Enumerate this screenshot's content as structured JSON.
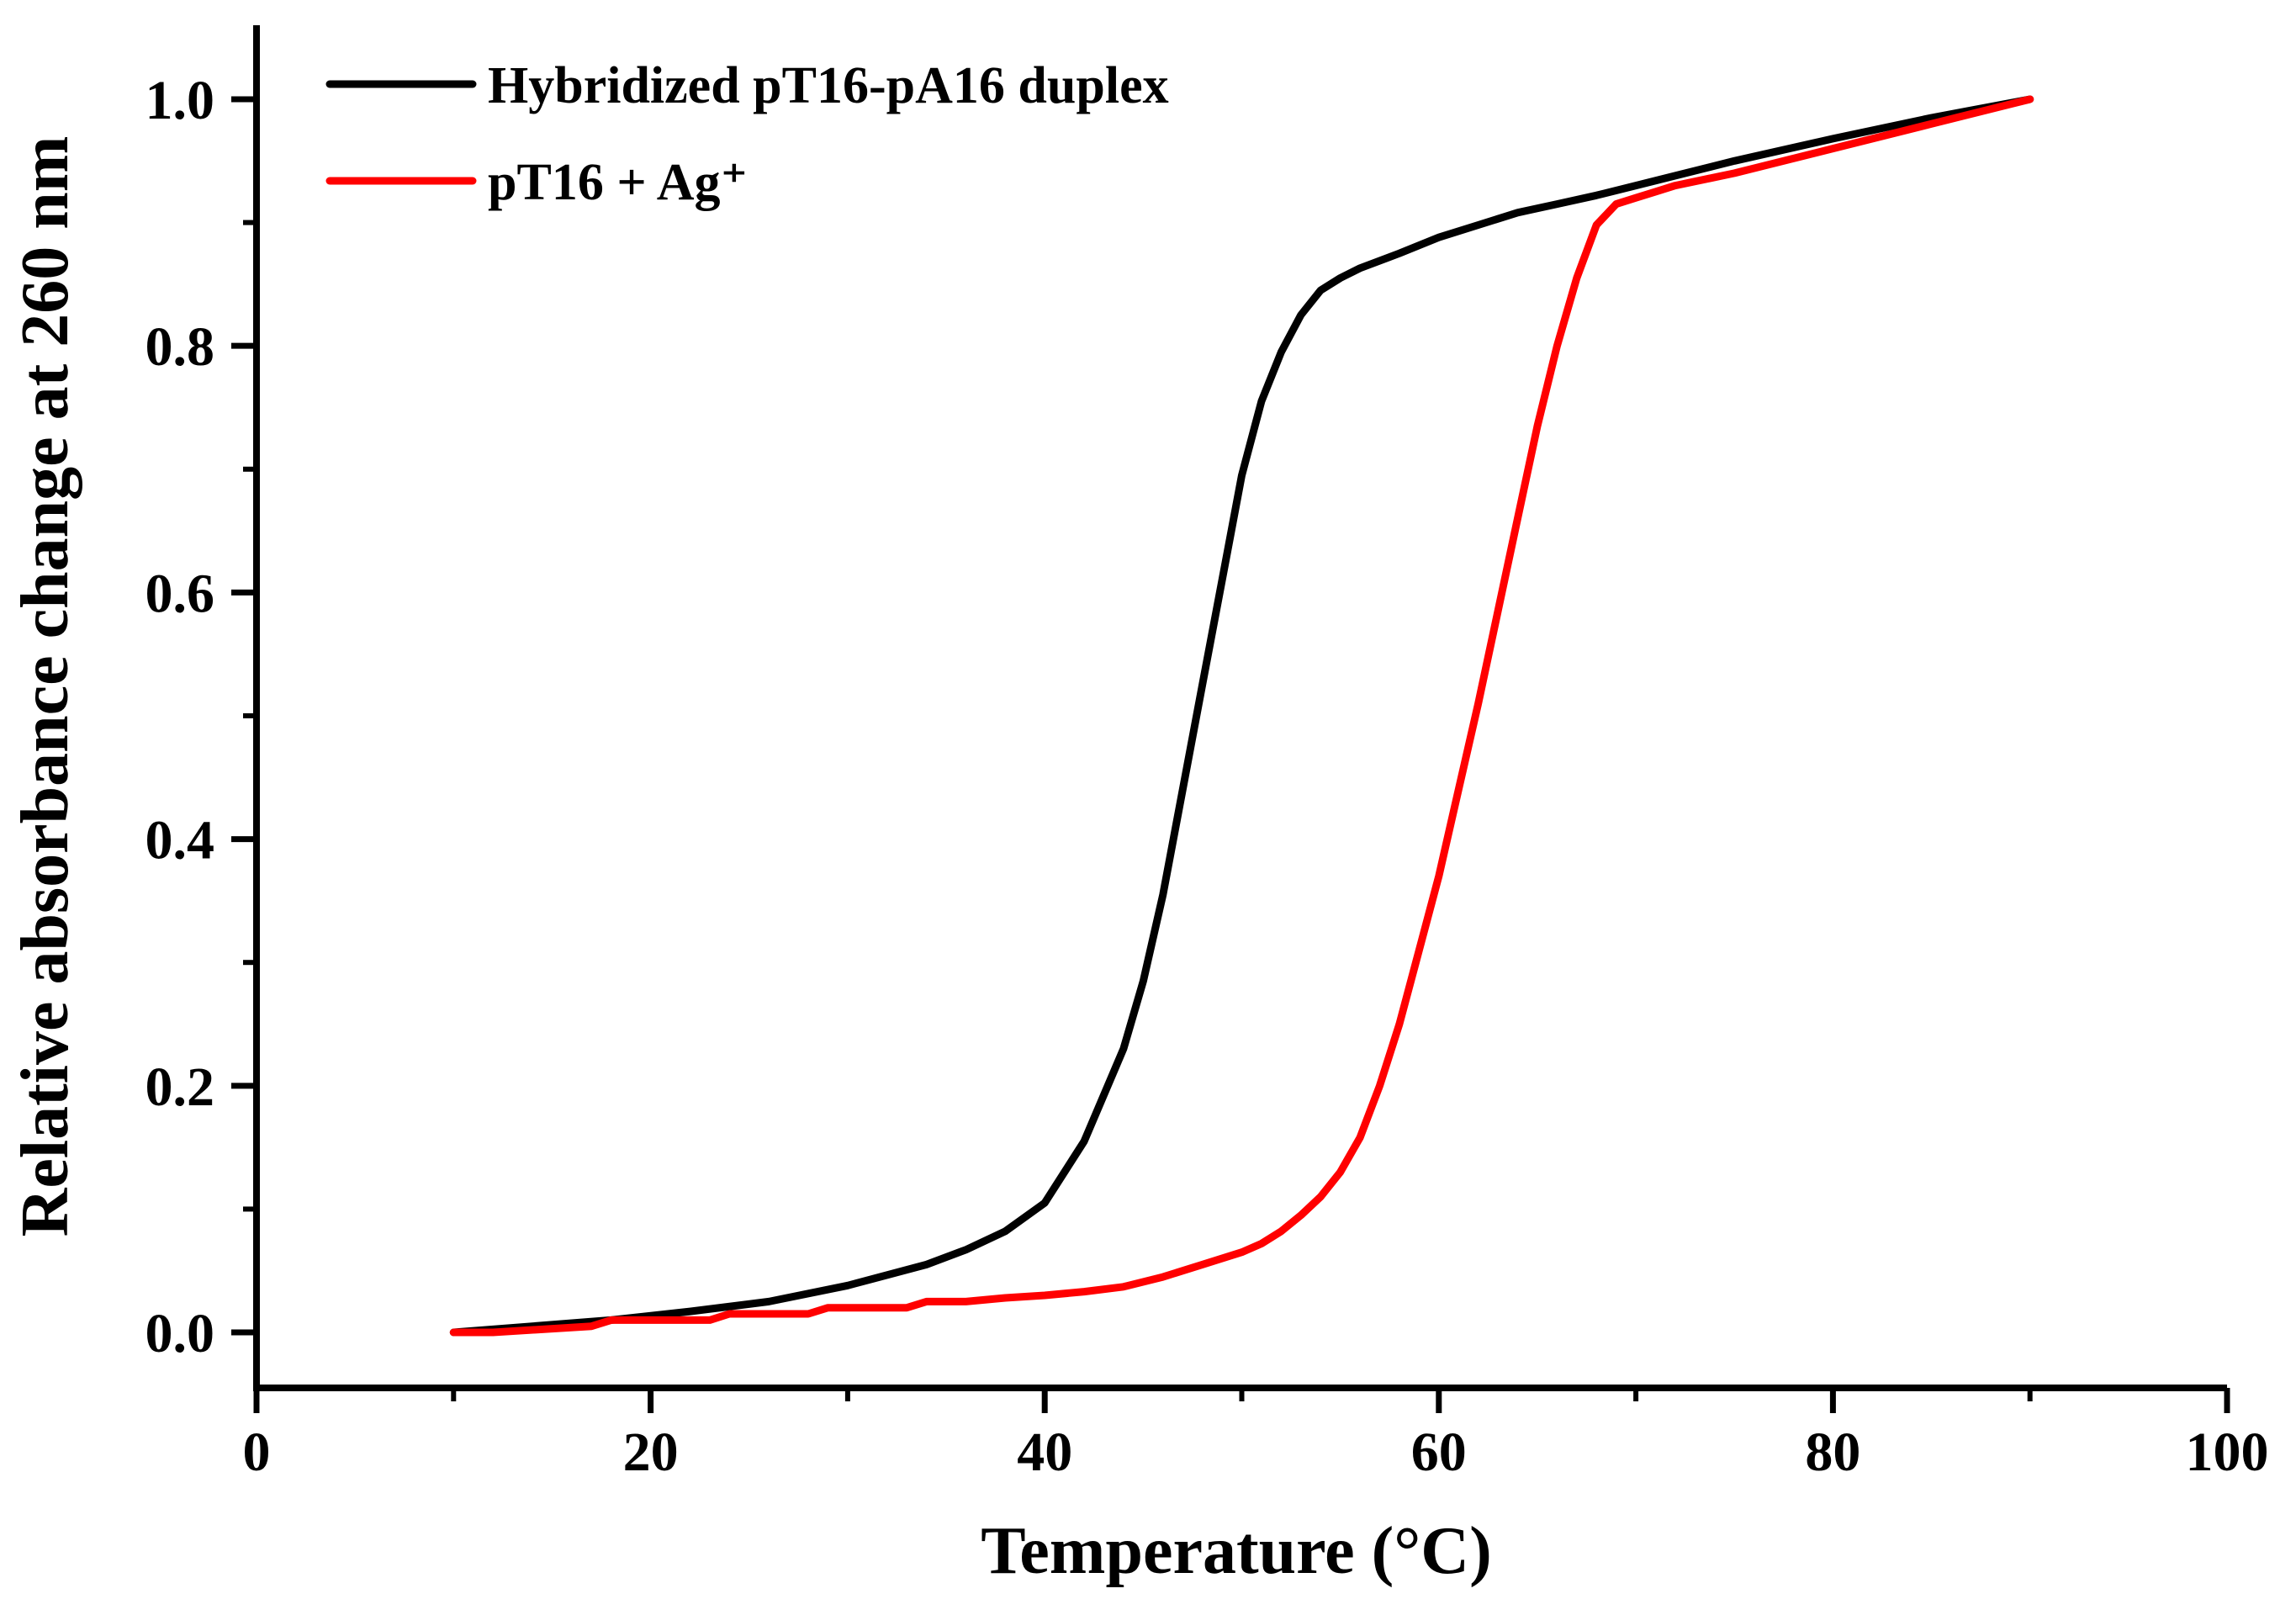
{
  "chart_data": {
    "type": "line",
    "title": "",
    "xlabel": "Temperature (°C)",
    "ylabel": "Relative absorbance change at 260 nm",
    "xlim": [
      0,
      100
    ],
    "ylim": [
      -0.045,
      1.06
    ],
    "x_ticks": [
      "0",
      "20",
      "40",
      "60",
      "80",
      "100"
    ],
    "y_ticks": [
      "0.0",
      "0.2",
      "0.4",
      "0.6",
      "0.8",
      "1.0"
    ],
    "grid": false,
    "legend_position": "top-left",
    "series": [
      {
        "name": "Hybridized pT16-pA16 duplex",
        "color": "#000000",
        "x": [
          10,
          14,
          18,
          22,
          26,
          30,
          34,
          36,
          38,
          40,
          42,
          44,
          45,
          46,
          47,
          48,
          49,
          50,
          51,
          52,
          53,
          54,
          55,
          56,
          58,
          60,
          62,
          64,
          66,
          68,
          70,
          72,
          75,
          80,
          85,
          90
        ],
        "y": [
          0.0,
          0.005,
          0.01,
          0.017,
          0.025,
          0.038,
          0.055,
          0.067,
          0.082,
          0.105,
          0.155,
          0.23,
          0.285,
          0.355,
          0.44,
          0.525,
          0.61,
          0.695,
          0.755,
          0.795,
          0.825,
          0.845,
          0.855,
          0.863,
          0.875,
          0.888,
          0.898,
          0.908,
          0.915,
          0.922,
          0.93,
          0.938,
          0.95,
          0.968,
          0.985,
          1.0
        ]
      },
      {
        "name": "pT16 + Ag⁺",
        "color": "#ff0000",
        "x": [
          10,
          12,
          17,
          18,
          23,
          24,
          28,
          29,
          33,
          34,
          36,
          38,
          40,
          42,
          44,
          46,
          48,
          50,
          51,
          52,
          53,
          54,
          55,
          56,
          57,
          58,
          59,
          60,
          61,
          62,
          63,
          64,
          65,
          66,
          67,
          68,
          69,
          70,
          71,
          72,
          75,
          80,
          85,
          90
        ],
        "y": [
          0.0,
          0.0,
          0.005,
          0.01,
          0.01,
          0.015,
          0.015,
          0.02,
          0.02,
          0.025,
          0.025,
          0.028,
          0.03,
          0.033,
          0.037,
          0.045,
          0.055,
          0.065,
          0.072,
          0.082,
          0.095,
          0.11,
          0.13,
          0.158,
          0.2,
          0.25,
          0.31,
          0.37,
          0.44,
          0.51,
          0.585,
          0.66,
          0.735,
          0.8,
          0.855,
          0.898,
          0.915,
          0.92,
          0.925,
          0.93,
          0.94,
          0.96,
          0.98,
          1.0
        ]
      }
    ]
  }
}
